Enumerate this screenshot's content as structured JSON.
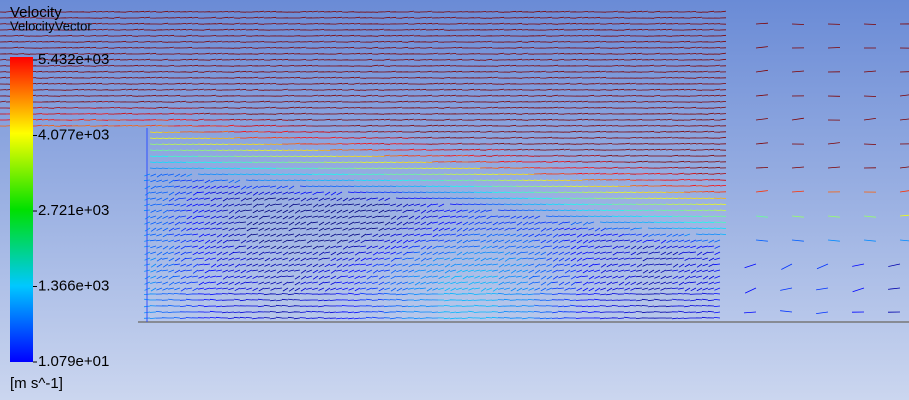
{
  "legend": {
    "title": "Velocity",
    "subtitle": "VelocityVector",
    "unit": "[m s^-1]",
    "ticks": [
      {
        "value": 5432,
        "label": "5.432e+03"
      },
      {
        "value": 4077,
        "label": "4.077e+03"
      },
      {
        "value": 2721,
        "label": "2.721e+03"
      },
      {
        "value": 1366,
        "label": "1.366e+03"
      },
      {
        "value": 10.79,
        "label": "1.079e+01"
      }
    ]
  }
}
